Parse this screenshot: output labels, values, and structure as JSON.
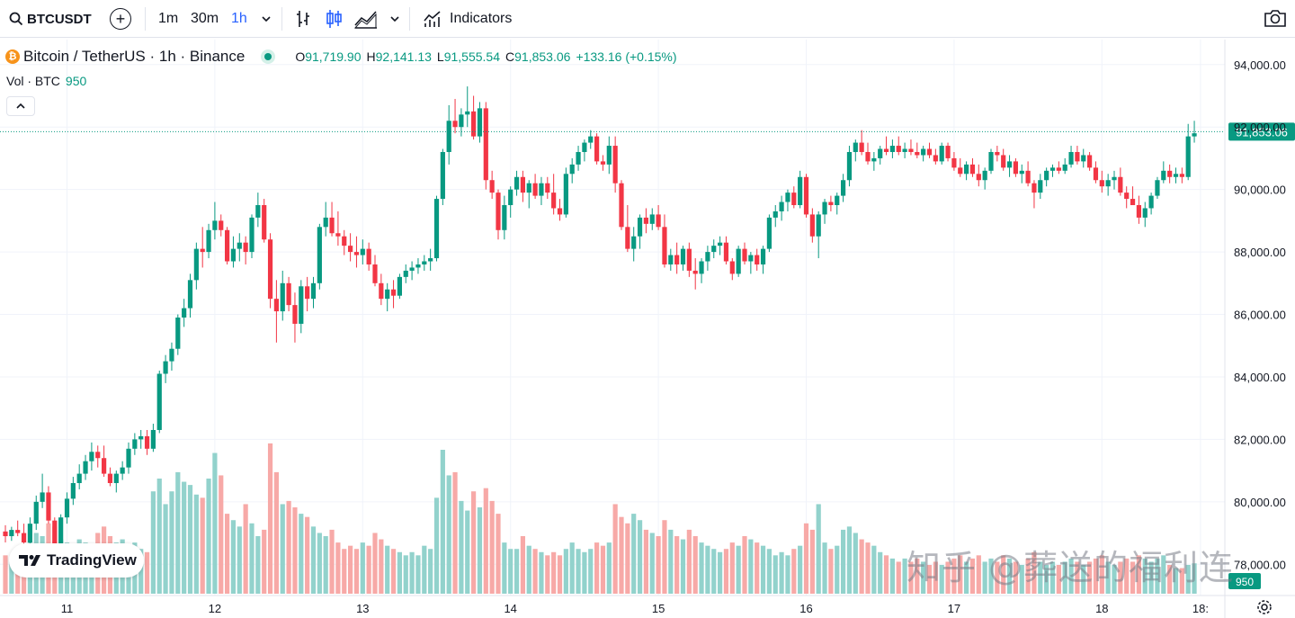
{
  "toolbar": {
    "symbol": "BTCUSDT",
    "intervals": [
      "1m",
      "30m",
      "1h"
    ],
    "active_interval": "1h",
    "indicators_label": "Indicators"
  },
  "legend": {
    "title": "Bitcoin / TetherUS · 1h · Binance",
    "open_label": "O",
    "open": "91,719.90",
    "high_label": "H",
    "high": "92,141.13",
    "low_label": "L",
    "low": "91,555.54",
    "close_label": "C",
    "close": "91,853.06",
    "change": "+133.16 (+0.15%)",
    "volume_label": "Vol · BTC",
    "volume_value": "950"
  },
  "colors": {
    "up": "#089981",
    "down": "#f23645",
    "up_volume": "#92d2cc",
    "down_volume": "#f7a9a7",
    "grid": "#f0f3fa",
    "text": "#131722",
    "accent": "#2962ff"
  },
  "branding": {
    "logo_text": "TradingView",
    "watermark": "知乎 @葬送的福利连"
  },
  "chart_data": {
    "type": "candlestick",
    "symbol": "BTCUSDT",
    "interval": "1h",
    "exchange": "Binance",
    "y_axis": {
      "min": 77000,
      "max": 94800,
      "ticks": [
        94000,
        92000,
        90000,
        88000,
        86000,
        84000,
        82000,
        80000,
        78000
      ],
      "tick_labels": [
        "94,000.00",
        "92,000.00",
        "90,000.00",
        "88,000.00",
        "86,000.00",
        "84,000.00",
        "82,000.00",
        "80,000.00",
        "78,000.00"
      ]
    },
    "x_axis": {
      "day_labels": [
        "11",
        "12",
        "13",
        "14",
        "15",
        "16",
        "17",
        "18",
        "18:"
      ],
      "day_indices": [
        10,
        34,
        58,
        82,
        106,
        130,
        154,
        178,
        194
      ]
    },
    "last_price": 91853.06,
    "last_price_label": "91,853.06",
    "last_volume_label": "950",
    "volume_max": 4500,
    "candles": [
      [
        79050,
        79250,
        78700,
        78900,
        1200
      ],
      [
        78900,
        79200,
        78750,
        79100,
        1000
      ],
      [
        79100,
        79400,
        78900,
        79000,
        1300
      ],
      [
        79000,
        79300,
        78600,
        78700,
        1500
      ],
      [
        78700,
        79500,
        78600,
        79300,
        1600
      ],
      [
        79300,
        80200,
        79100,
        80000,
        1900
      ],
      [
        80000,
        80900,
        79800,
        80300,
        1800
      ],
      [
        80300,
        80500,
        79300,
        79400,
        2200
      ],
      [
        79400,
        79500,
        78300,
        78500,
        2100
      ],
      [
        78500,
        79600,
        78200,
        79500,
        1700
      ],
      [
        79500,
        80300,
        79300,
        80100,
        1600
      ],
      [
        80100,
        80800,
        79900,
        80600,
        1500
      ],
      [
        80600,
        81200,
        80400,
        80900,
        1700
      ],
      [
        80900,
        81500,
        80700,
        81300,
        1600
      ],
      [
        81300,
        81900,
        81000,
        81600,
        1400
      ],
      [
        81600,
        81800,
        81100,
        81400,
        1900
      ],
      [
        81400,
        81800,
        80800,
        80900,
        2100
      ],
      [
        80900,
        81100,
        80500,
        80600,
        1800
      ],
      [
        80600,
        81000,
        80300,
        80900,
        1600
      ],
      [
        80900,
        81300,
        80700,
        81100,
        1700
      ],
      [
        81100,
        81900,
        80900,
        81700,
        1500
      ],
      [
        81700,
        82200,
        81500,
        82000,
        1600
      ],
      [
        82000,
        82300,
        81700,
        82100,
        1400
      ],
      [
        82100,
        82300,
        81500,
        81700,
        1300
      ],
      [
        81700,
        82500,
        81600,
        82300,
        3200
      ],
      [
        82300,
        84200,
        82200,
        84100,
        3600
      ],
      [
        84100,
        84700,
        83800,
        84500,
        2800
      ],
      [
        84500,
        85100,
        84200,
        84900,
        3200
      ],
      [
        84900,
        86000,
        84700,
        85900,
        3800
      ],
      [
        85900,
        86500,
        85600,
        86200,
        3500
      ],
      [
        86200,
        87300,
        85900,
        87100,
        3400
      ],
      [
        87100,
        88300,
        86800,
        88100,
        3100
      ],
      [
        88100,
        88800,
        87500,
        88000,
        3000
      ],
      [
        88000,
        88900,
        87800,
        88700,
        3600
      ],
      [
        88700,
        89600,
        88400,
        89000,
        4400
      ],
      [
        89000,
        89200,
        88500,
        88700,
        3700
      ],
      [
        88700,
        88800,
        87600,
        87700,
        2500
      ],
      [
        87700,
        88500,
        87500,
        88100,
        2300
      ],
      [
        88100,
        88600,
        87700,
        88300,
        2100
      ],
      [
        88300,
        88500,
        87600,
        88000,
        2800
      ],
      [
        88000,
        89200,
        87800,
        89100,
        2200
      ],
      [
        89100,
        89900,
        88800,
        89500,
        1800
      ],
      [
        89500,
        89700,
        88300,
        88400,
        2000
      ],
      [
        88400,
        88600,
        86200,
        86500,
        4700
      ],
      [
        86500,
        87100,
        85100,
        86100,
        3800
      ],
      [
        86100,
        87400,
        85800,
        87000,
        2800
      ],
      [
        87000,
        87200,
        86100,
        86300,
        2900
      ],
      [
        86300,
        86700,
        85100,
        85700,
        2700
      ],
      [
        85700,
        87100,
        85400,
        86900,
        2500
      ],
      [
        86900,
        87200,
        86100,
        86500,
        2400
      ],
      [
        86500,
        87200,
        86200,
        87000,
        2100
      ],
      [
        87000,
        88900,
        86800,
        88800,
        1900
      ],
      [
        88800,
        89600,
        88500,
        89100,
        1800
      ],
      [
        89100,
        89600,
        88500,
        88600,
        2000
      ],
      [
        88600,
        89300,
        88200,
        88500,
        1600
      ],
      [
        88500,
        88700,
        87900,
        88200,
        1400
      ],
      [
        88200,
        88600,
        87700,
        88000,
        1500
      ],
      [
        88000,
        88500,
        87500,
        87900,
        1400
      ],
      [
        87900,
        88400,
        87600,
        88100,
        1600
      ],
      [
        88100,
        88300,
        87400,
        87600,
        1500
      ],
      [
        87600,
        87900,
        86900,
        87000,
        1900
      ],
      [
        87000,
        87300,
        86300,
        86500,
        1700
      ],
      [
        86500,
        87000,
        86100,
        86800,
        1500
      ],
      [
        86800,
        87100,
        86200,
        86600,
        1400
      ],
      [
        86600,
        87300,
        86500,
        87200,
        1300
      ],
      [
        87200,
        87600,
        87000,
        87400,
        1200
      ],
      [
        87400,
        87700,
        87100,
        87500,
        1300
      ],
      [
        87500,
        87800,
        87300,
        87600,
        1200
      ],
      [
        87600,
        87900,
        87400,
        87700,
        1500
      ],
      [
        87700,
        88100,
        87400,
        87800,
        1400
      ],
      [
        87800,
        89800,
        87700,
        89700,
        3000
      ],
      [
        89700,
        91300,
        89500,
        91200,
        4500
      ],
      [
        91200,
        92700,
        90800,
        92200,
        3700
      ],
      [
        92200,
        92900,
        91800,
        92000,
        3800
      ],
      [
        92000,
        92600,
        91700,
        92400,
        2900
      ],
      [
        92400,
        93300,
        92000,
        92500,
        2600
      ],
      [
        92500,
        93000,
        91600,
        91700,
        3200
      ],
      [
        91700,
        92800,
        91500,
        92600,
        2700
      ],
      [
        92600,
        92800,
        90000,
        90300,
        3300
      ],
      [
        90300,
        90600,
        89700,
        89900,
        2900
      ],
      [
        89900,
        90000,
        88400,
        88700,
        2500
      ],
      [
        88700,
        89800,
        88400,
        89500,
        1600
      ],
      [
        89500,
        90100,
        89100,
        90000,
        1400
      ],
      [
        90000,
        90600,
        89800,
        90400,
        1400
      ],
      [
        90400,
        90600,
        89600,
        89900,
        1800
      ],
      [
        89900,
        90300,
        89400,
        90200,
        1500
      ],
      [
        90200,
        90500,
        89700,
        89800,
        1400
      ],
      [
        89800,
        90400,
        89500,
        90200,
        1300
      ],
      [
        90200,
        90400,
        89700,
        89900,
        1200
      ],
      [
        89900,
        90500,
        89200,
        89400,
        1300
      ],
      [
        89400,
        89700,
        89000,
        89200,
        1200
      ],
      [
        89200,
        90700,
        89100,
        90500,
        1400
      ],
      [
        90500,
        91000,
        90200,
        90800,
        1600
      ],
      [
        90800,
        91400,
        90600,
        91200,
        1400
      ],
      [
        91200,
        91600,
        90900,
        91500,
        1300
      ],
      [
        91500,
        91900,
        91300,
        91700,
        1400
      ],
      [
        91700,
        91800,
        90800,
        90900,
        1600
      ],
      [
        90900,
        91100,
        90600,
        90800,
        1500
      ],
      [
        90800,
        91700,
        90500,
        91400,
        1600
      ],
      [
        91400,
        91700,
        89900,
        90200,
        2800
      ],
      [
        90200,
        90300,
        88700,
        88800,
        2400
      ],
      [
        88800,
        89500,
        88000,
        88100,
        2200
      ],
      [
        88100,
        88800,
        87700,
        88500,
        2500
      ],
      [
        88500,
        89200,
        88100,
        89100,
        2300
      ],
      [
        89100,
        89400,
        88600,
        88900,
        2000
      ],
      [
        88900,
        89400,
        88700,
        89200,
        1900
      ],
      [
        89200,
        89500,
        88700,
        88800,
        1800
      ],
      [
        88800,
        89200,
        87500,
        87600,
        2300
      ],
      [
        87600,
        88100,
        87400,
        87900,
        2000
      ],
      [
        87900,
        88300,
        87300,
        87600,
        1800
      ],
      [
        87600,
        88200,
        87400,
        88100,
        1700
      ],
      [
        88100,
        88300,
        87200,
        87400,
        2000
      ],
      [
        87400,
        87800,
        86800,
        87300,
        1800
      ],
      [
        87300,
        87800,
        87000,
        87700,
        1600
      ],
      [
        87700,
        88200,
        87400,
        88000,
        1500
      ],
      [
        88000,
        88400,
        87800,
        88200,
        1400
      ],
      [
        88200,
        88500,
        87900,
        88300,
        1300
      ],
      [
        88300,
        88500,
        87600,
        87700,
        1400
      ],
      [
        87700,
        87800,
        87100,
        87300,
        1600
      ],
      [
        87300,
        88200,
        87200,
        88100,
        1500
      ],
      [
        88100,
        88300,
        87600,
        87700,
        1800
      ],
      [
        87700,
        88000,
        87300,
        87900,
        1700
      ],
      [
        87900,
        88100,
        87400,
        87600,
        1600
      ],
      [
        87600,
        88200,
        87300,
        88100,
        1500
      ],
      [
        88100,
        89200,
        88000,
        89100,
        1400
      ],
      [
        89100,
        89500,
        88800,
        89300,
        1200
      ],
      [
        89300,
        89800,
        89000,
        89600,
        1300
      ],
      [
        89600,
        90000,
        89300,
        89900,
        1200
      ],
      [
        89900,
        90100,
        89400,
        89500,
        1400
      ],
      [
        89500,
        90600,
        89400,
        90400,
        1500
      ],
      [
        90400,
        90500,
        89100,
        89200,
        2200
      ],
      [
        89200,
        89400,
        88300,
        88500,
        2000
      ],
      [
        88500,
        89300,
        87800,
        89200,
        2800
      ],
      [
        89200,
        89700,
        88900,
        89600,
        1600
      ],
      [
        89600,
        89800,
        89300,
        89500,
        1400
      ],
      [
        89500,
        89900,
        89200,
        89800,
        1500
      ],
      [
        89800,
        90500,
        89600,
        90300,
        2000
      ],
      [
        90300,
        91400,
        90100,
        91200,
        2100
      ],
      [
        91200,
        91600,
        90900,
        91500,
        1900
      ],
      [
        91500,
        91900,
        91100,
        91200,
        1700
      ],
      [
        91200,
        91500,
        90800,
        90900,
        1600
      ],
      [
        90900,
        91200,
        90600,
        91000,
        1500
      ],
      [
        91000,
        91400,
        90800,
        91300,
        1300
      ],
      [
        91300,
        91700,
        91100,
        91200,
        1200
      ],
      [
        91200,
        91600,
        91000,
        91400,
        1100
      ],
      [
        91400,
        91700,
        91100,
        91200,
        1000
      ],
      [
        91200,
        91500,
        91000,
        91300,
        1100
      ],
      [
        91300,
        91600,
        91100,
        91200,
        1000
      ],
      [
        91200,
        91500,
        91000,
        91100,
        1100
      ],
      [
        91100,
        91400,
        90900,
        91300,
        1000
      ],
      [
        91300,
        91500,
        91000,
        91100,
        900
      ],
      [
        91100,
        91300,
        90800,
        90900,
        1000
      ],
      [
        90900,
        91500,
        90800,
        91400,
        900
      ],
      [
        91400,
        91500,
        90900,
        91000,
        1000
      ],
      [
        91000,
        91200,
        90600,
        90700,
        1100
      ],
      [
        90700,
        91000,
        90400,
        90500,
        1200
      ],
      [
        90500,
        90900,
        90300,
        90800,
        1000
      ],
      [
        90800,
        91000,
        90400,
        90500,
        1100
      ],
      [
        90500,
        90800,
        90100,
        90300,
        1200
      ],
      [
        90300,
        90700,
        90000,
        90600,
        1000
      ],
      [
        90600,
        91300,
        90500,
        91200,
        1100
      ],
      [
        91200,
        91400,
        90900,
        91100,
        1000
      ],
      [
        91100,
        91300,
        90600,
        90700,
        1200
      ],
      [
        90700,
        91100,
        90400,
        90900,
        1100
      ],
      [
        90900,
        91000,
        90400,
        90500,
        1000
      ],
      [
        90500,
        90800,
        90200,
        90600,
        900
      ],
      [
        90600,
        90900,
        90100,
        90200,
        1100
      ],
      [
        90200,
        90300,
        89400,
        89900,
        1300
      ],
      [
        89900,
        90500,
        89700,
        90300,
        1000
      ],
      [
        90300,
        90700,
        90100,
        90600,
        900
      ],
      [
        90600,
        90800,
        90400,
        90700,
        1000
      ],
      [
        90700,
        90900,
        90500,
        90600,
        900
      ],
      [
        90600,
        91000,
        90500,
        90800,
        1000
      ],
      [
        90800,
        91400,
        90700,
        91200,
        1100
      ],
      [
        91200,
        91400,
        90800,
        90900,
        1000
      ],
      [
        90900,
        91300,
        90700,
        91100,
        900
      ],
      [
        91100,
        91200,
        90600,
        90700,
        1000
      ],
      [
        90700,
        90900,
        90200,
        90300,
        1100
      ],
      [
        90300,
        90600,
        89900,
        90100,
        1200
      ],
      [
        90100,
        90500,
        89800,
        90300,
        1000
      ],
      [
        90300,
        90600,
        90000,
        90400,
        900
      ],
      [
        90400,
        90700,
        89800,
        89900,
        1000
      ],
      [
        89900,
        90100,
        89400,
        89700,
        1100
      ],
      [
        89700,
        90100,
        89500,
        89500,
        1000
      ],
      [
        89500,
        89800,
        88900,
        89100,
        1200
      ],
      [
        89100,
        89600,
        88800,
        89400,
        1100
      ],
      [
        89400,
        89900,
        89200,
        89800,
        1000
      ],
      [
        89800,
        90400,
        89700,
        90300,
        1100
      ],
      [
        90300,
        90900,
        90200,
        90600,
        1200
      ],
      [
        90600,
        90800,
        90200,
        90400,
        900
      ],
      [
        90400,
        90700,
        90200,
        90500,
        800
      ],
      [
        90500,
        90700,
        90200,
        90400,
        800
      ],
      [
        90400,
        92100,
        90300,
        91700,
        900
      ],
      [
        91700,
        92200,
        91500,
        91800,
        950
      ]
    ]
  }
}
